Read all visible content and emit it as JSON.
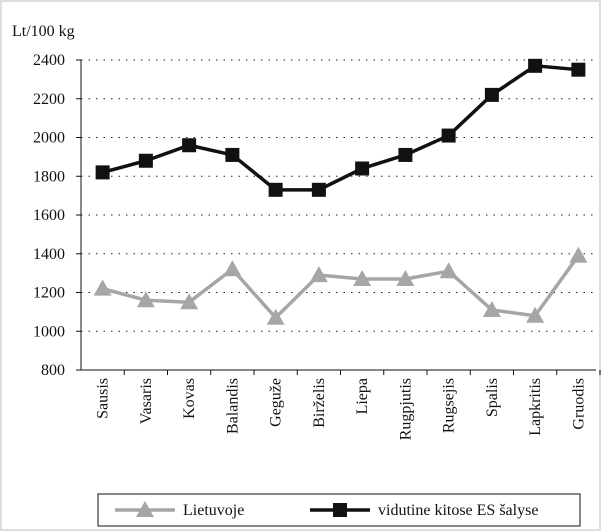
{
  "chart_data": {
    "type": "line",
    "ylabel": "Lt/100 kg",
    "categories": [
      "Sausis",
      "Vasaris",
      "Kovas",
      "Balandis",
      "Geguže",
      "Birželis",
      "Liepa",
      "Rugpjutis",
      "Rugsejis",
      "Spalis",
      "Lapkritis",
      "Gruodis"
    ],
    "series": [
      {
        "name": "Lietuvoje",
        "color": "#a6a6a6",
        "marker": "triangle",
        "values": [
          1220,
          1160,
          1150,
          1320,
          1070,
          1290,
          1270,
          1270,
          1310,
          1110,
          1080,
          1390
        ]
      },
      {
        "name": "vidutine kitose ES šalyse",
        "color": "#111111",
        "marker": "square",
        "values": [
          1820,
          1880,
          1960,
          1910,
          1730,
          1730,
          1840,
          1910,
          2010,
          2220,
          2370,
          2350
        ]
      }
    ],
    "ylim": [
      800,
      2400
    ],
    "yticks": [
      800,
      1000,
      1200,
      1400,
      1600,
      1800,
      2000,
      2200,
      2400
    ],
    "grid": true,
    "legend": "bottom"
  }
}
